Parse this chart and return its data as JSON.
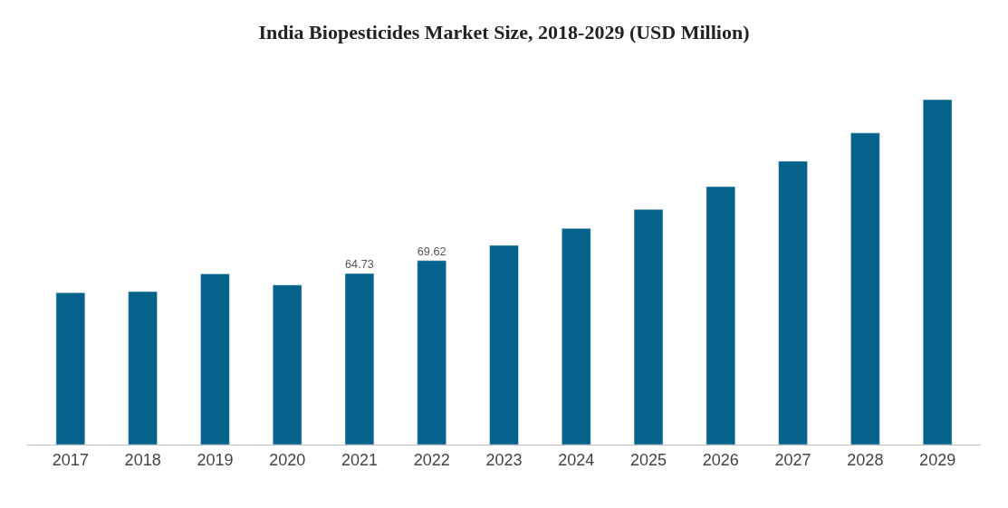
{
  "chart_data": {
    "type": "bar",
    "title": "India Biopesticides Market Size, 2018-2029 (USD Million)",
    "categories": [
      "2017",
      "2018",
      "2019",
      "2020",
      "2021",
      "2022",
      "2023",
      "2024",
      "2025",
      "2026",
      "2027",
      "2028",
      "2029"
    ],
    "values": [
      57.5,
      57.9,
      64.6,
      60.4,
      64.73,
      69.62,
      75.4,
      81.8,
      89.0,
      97.6,
      107.2,
      117.9,
      130.5
    ],
    "value_labels": [
      null,
      null,
      null,
      null,
      "64.73",
      "69.62",
      null,
      null,
      null,
      null,
      null,
      null,
      null
    ],
    "color": "#05628a"
  }
}
